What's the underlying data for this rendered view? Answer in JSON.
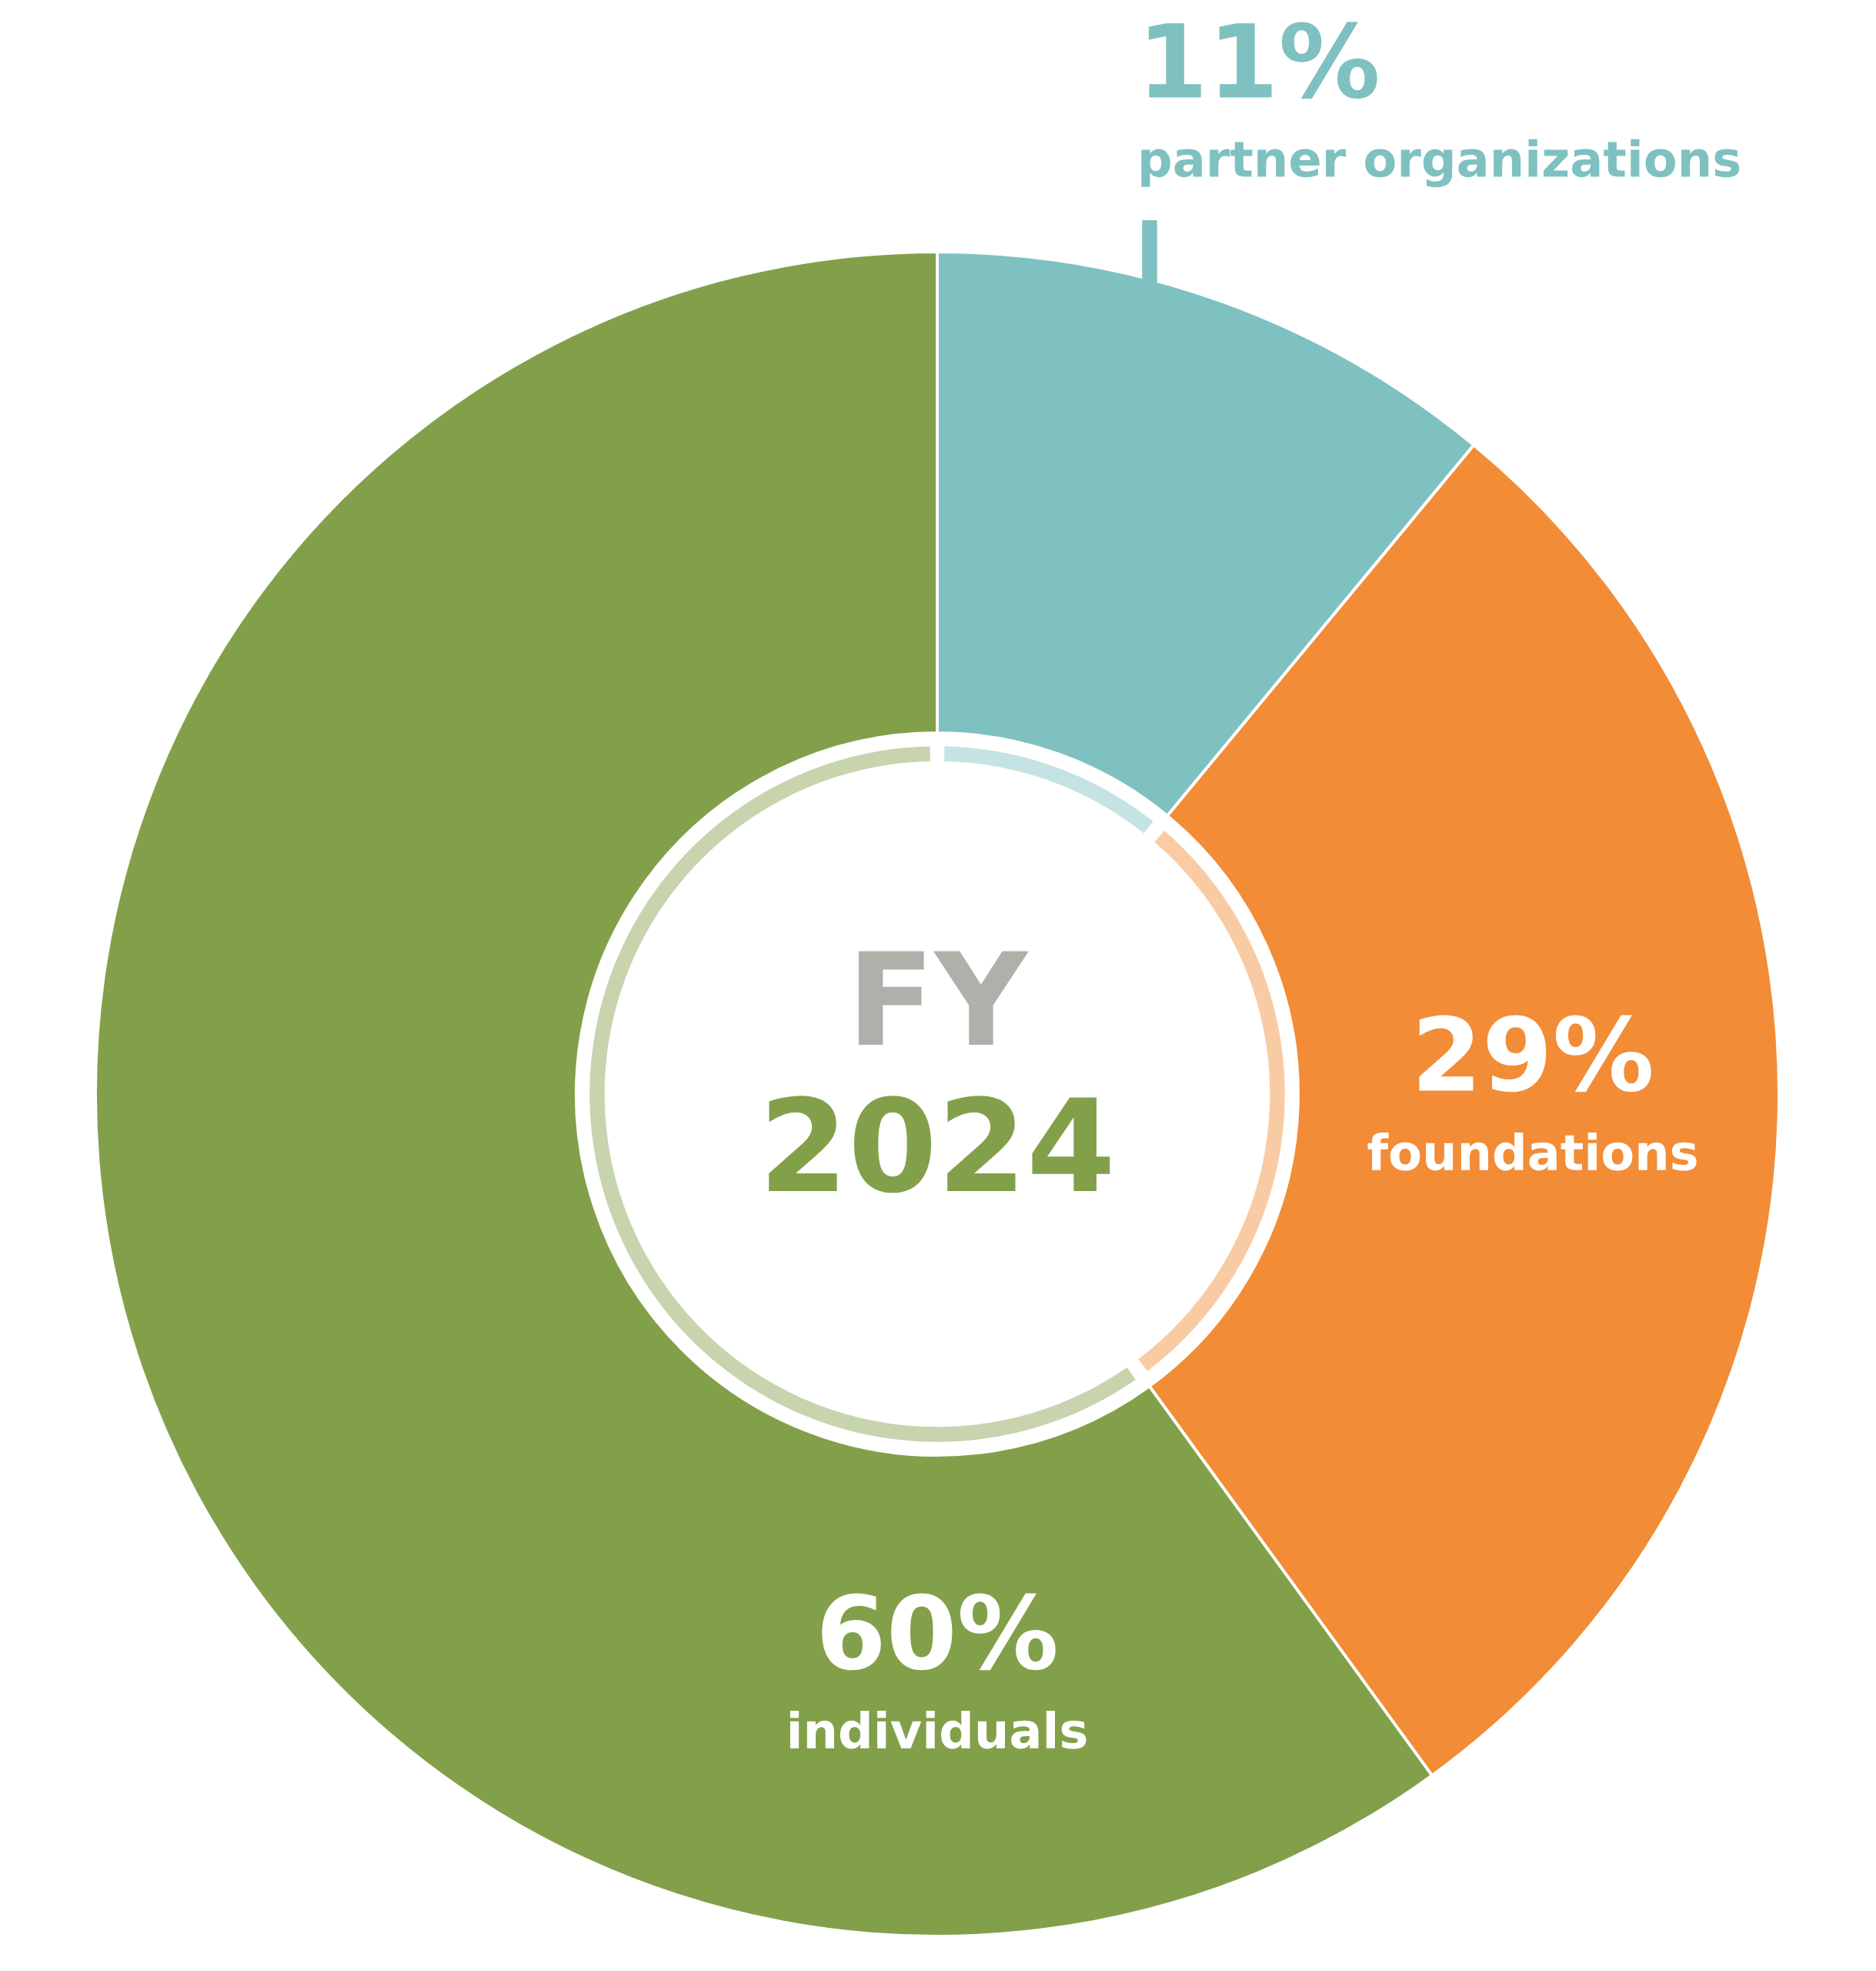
{
  "chart_data": {
    "type": "donut",
    "categories": [
      "partner organizations",
      "foundations",
      "individuals"
    ],
    "values": [
      11,
      29,
      60
    ],
    "colors": [
      "#7fc1c1",
      "#f28c36",
      "#82a04a"
    ],
    "value_labels": [
      "11%",
      "29%",
      "60%"
    ],
    "annotations": [
      "FY",
      "2024"
    ]
  }
}
